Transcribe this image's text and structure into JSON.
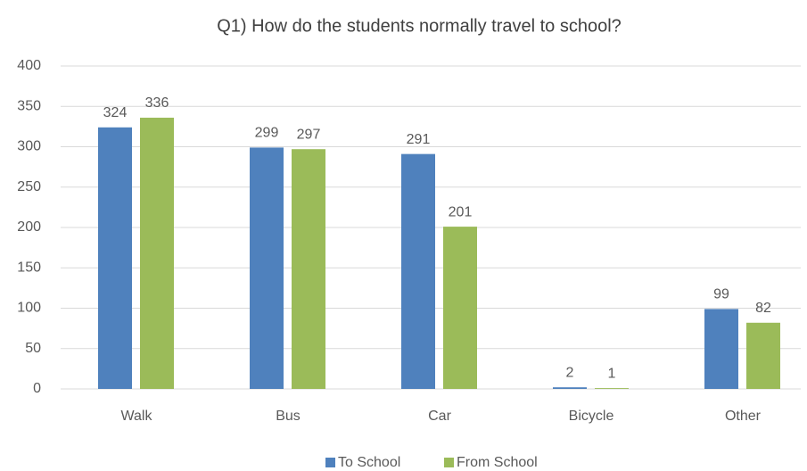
{
  "chart_data": {
    "type": "bar",
    "title": "Q1) How do the students normally travel to school?",
    "categories": [
      "Walk",
      "Bus",
      "Car",
      "Bicycle",
      "Other"
    ],
    "series": [
      {
        "name": "To School",
        "color": "#4f81bd",
        "values": [
          324,
          299,
          291,
          2,
          99
        ]
      },
      {
        "name": "From School",
        "color": "#9bbb59",
        "values": [
          336,
          297,
          201,
          1,
          82
        ]
      }
    ],
    "ylim": [
      0,
      400
    ],
    "yticks": [
      0,
      50,
      100,
      150,
      200,
      250,
      300,
      350,
      400
    ],
    "grid": true,
    "legend": "bottom"
  }
}
